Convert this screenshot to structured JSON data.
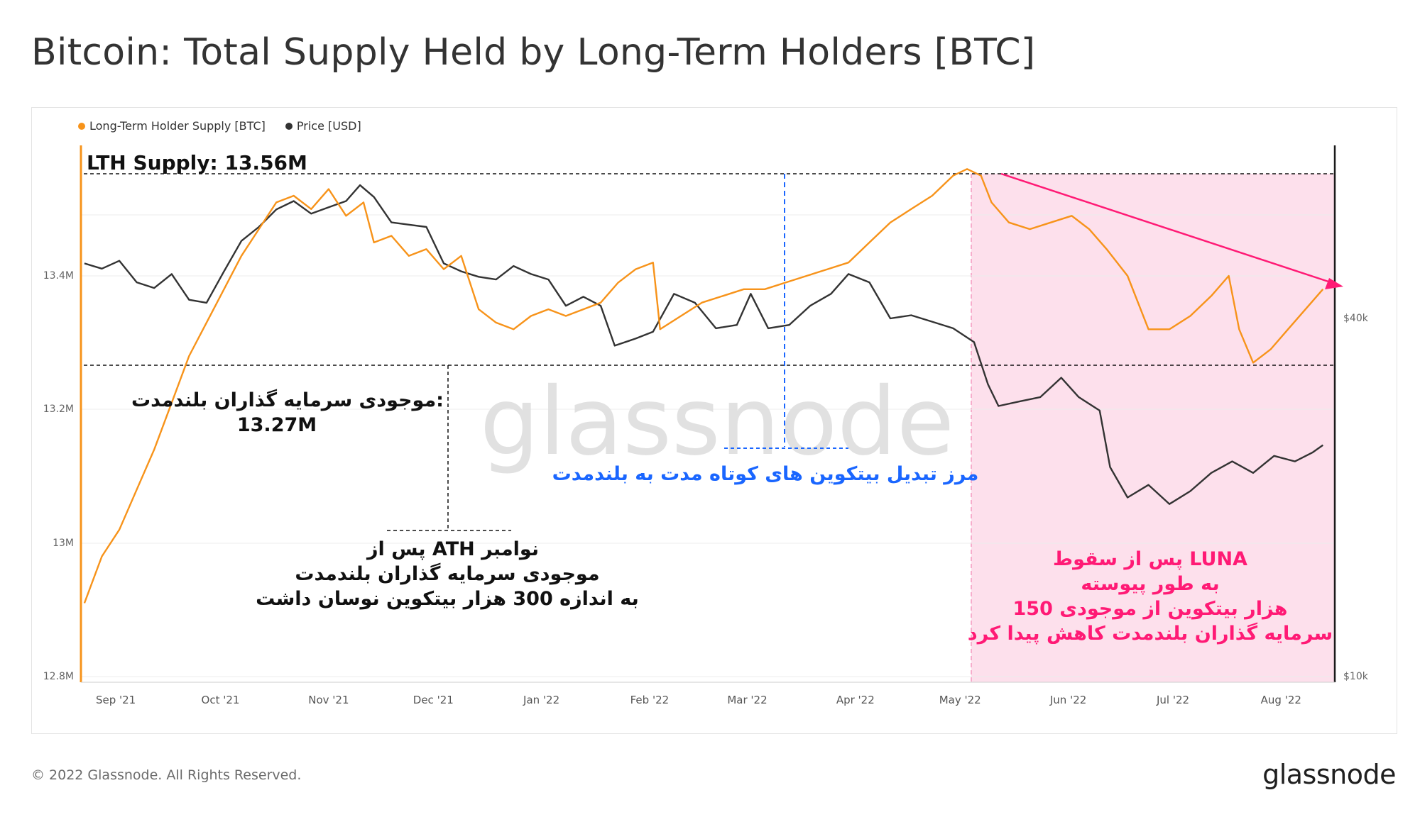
{
  "title": "Bitcoin: Total Supply Held by Long-Term Holders [BTC]",
  "footer": "© 2022 Glassnode. All Rights Reserved.",
  "brand": "glassnode",
  "watermark": "glassnode",
  "colors": {
    "lth": "#f7931a",
    "price": "#2b2b2b",
    "shade": "#fde0ec",
    "annotation_pink": "#ff1a75",
    "annotation_blue": "#1a66ff"
  },
  "legend": [
    {
      "label": "Long-Term Holder Supply [BTC]",
      "color": "#f7931a"
    },
    {
      "label": "Price [USD]",
      "color": "#333333"
    }
  ],
  "annotations": {
    "lth_supply": "LTH Supply: 13.56M",
    "left_value_line1": "موجودی سرمایه گذاران بلندمدت:",
    "left_value_line2": "13.27M",
    "blue_boundary": "مرز تبدیل بیتکوین های کوتاه مدت به بلندمدت",
    "ath_line1": "پس از ATH نوامبر",
    "ath_line2": "موجودی سرمایه گذاران بلندمدت",
    "ath_line3": "به اندازه 300 هزار بیتکوین نوسان داشت",
    "luna_line1": "پس از سقوط  LUNA",
    "luna_line2": "به طور پیوسته",
    "luna_line3": "150 هزار بیتکوین از موجودی",
    "luna_line4": "سرمایه گذاران بلندمدت کاهش پیدا کرد"
  },
  "chart_data": {
    "type": "line",
    "title": "Bitcoin: Total Supply Held by Long-Term Holders [BTC]",
    "x_ticks": [
      "Sep '21",
      "Oct '21",
      "Nov '21",
      "Dec '21",
      "Jan '22",
      "Feb '22",
      "Mar '22",
      "Apr '22",
      "May '22",
      "Jun '22",
      "Jul '22",
      "Aug '22"
    ],
    "y_left": {
      "label": "",
      "ticks": [
        "13.4M",
        "13.2M",
        "13M",
        "12.8M"
      ],
      "range": [
        12.8,
        13.6
      ],
      "unit": "M BTC"
    },
    "y_right": {
      "label": "",
      "ticks": [
        "$40k",
        "$10k"
      ],
      "scale": "log"
    },
    "grid": true,
    "legend_position": "top-left",
    "series": [
      {
        "name": "Long-Term Holder Supply [BTC]",
        "axis": "left",
        "x": [
          "2021-08-23",
          "2021-08-28",
          "2021-09-02",
          "2021-09-07",
          "2021-09-12",
          "2021-09-17",
          "2021-09-22",
          "2021-09-27",
          "2021-10-02",
          "2021-10-07",
          "2021-10-12",
          "2021-10-17",
          "2021-10-22",
          "2021-10-27",
          "2021-11-01",
          "2021-11-06",
          "2021-11-11",
          "2021-11-14",
          "2021-11-19",
          "2021-11-24",
          "2021-11-29",
          "2021-12-04",
          "2021-12-09",
          "2021-12-14",
          "2021-12-19",
          "2021-12-24",
          "2021-12-29",
          "2022-01-03",
          "2022-01-08",
          "2022-01-13",
          "2022-01-18",
          "2022-01-23",
          "2022-01-28",
          "2022-02-02",
          "2022-02-04",
          "2022-02-10",
          "2022-02-16",
          "2022-02-22",
          "2022-02-28",
          "2022-03-06",
          "2022-03-12",
          "2022-03-18",
          "2022-03-24",
          "2022-03-30",
          "2022-04-05",
          "2022-04-11",
          "2022-04-17",
          "2022-04-23",
          "2022-04-29",
          "2022-05-03",
          "2022-05-07",
          "2022-05-10",
          "2022-05-15",
          "2022-05-21",
          "2022-05-27",
          "2022-06-02",
          "2022-06-07",
          "2022-06-12",
          "2022-06-18",
          "2022-06-24",
          "2022-06-30",
          "2022-07-06",
          "2022-07-12",
          "2022-07-17",
          "2022-07-20",
          "2022-07-24",
          "2022-07-29",
          "2022-08-03",
          "2022-08-08",
          "2022-08-13"
        ],
        "values": [
          12.91,
          12.98,
          13.02,
          13.08,
          13.14,
          13.21,
          13.28,
          13.33,
          13.38,
          13.43,
          13.47,
          13.51,
          13.52,
          13.5,
          13.53,
          13.49,
          13.51,
          13.45,
          13.46,
          13.43,
          13.44,
          13.41,
          13.43,
          13.35,
          13.33,
          13.32,
          13.34,
          13.35,
          13.34,
          13.35,
          13.36,
          13.39,
          13.41,
          13.42,
          13.32,
          13.34,
          13.36,
          13.37,
          13.38,
          13.38,
          13.39,
          13.4,
          13.41,
          13.42,
          13.45,
          13.48,
          13.5,
          13.52,
          13.55,
          13.56,
          13.55,
          13.51,
          13.48,
          13.47,
          13.48,
          13.49,
          13.47,
          13.44,
          13.4,
          13.32,
          13.32,
          13.34,
          13.37,
          13.4,
          13.32,
          13.27,
          13.29,
          13.32,
          13.35,
          13.38
        ]
      },
      {
        "name": "Price [USD]",
        "axis": "right",
        "x": [
          "2021-08-23",
          "2021-08-28",
          "2021-09-02",
          "2021-09-07",
          "2021-09-12",
          "2021-09-17",
          "2021-09-22",
          "2021-09-27",
          "2021-10-02",
          "2021-10-07",
          "2021-10-12",
          "2021-10-17",
          "2021-10-22",
          "2021-10-27",
          "2021-11-01",
          "2021-11-06",
          "2021-11-10",
          "2021-11-14",
          "2021-11-19",
          "2021-11-24",
          "2021-11-29",
          "2021-12-04",
          "2021-12-09",
          "2021-12-14",
          "2021-12-19",
          "2021-12-24",
          "2021-12-29",
          "2022-01-03",
          "2022-01-08",
          "2022-01-13",
          "2022-01-18",
          "2022-01-22",
          "2022-01-28",
          "2022-02-02",
          "2022-02-08",
          "2022-02-14",
          "2022-02-20",
          "2022-02-26",
          "2022-03-02",
          "2022-03-07",
          "2022-03-13",
          "2022-03-19",
          "2022-03-25",
          "2022-03-30",
          "2022-04-05",
          "2022-04-11",
          "2022-04-17",
          "2022-04-23",
          "2022-04-29",
          "2022-05-05",
          "2022-05-09",
          "2022-05-12",
          "2022-05-18",
          "2022-05-24",
          "2022-05-30",
          "2022-06-04",
          "2022-06-10",
          "2022-06-13",
          "2022-06-18",
          "2022-06-24",
          "2022-06-30",
          "2022-07-06",
          "2022-07-12",
          "2022-07-18",
          "2022-07-24",
          "2022-07-30",
          "2022-08-05",
          "2022-08-10",
          "2022-08-13"
        ],
        "values": [
          49500,
          48500,
          50000,
          46000,
          45000,
          47500,
          43000,
          42500,
          48000,
          54000,
          57000,
          61000,
          63000,
          60000,
          61500,
          63000,
          67000,
          64000,
          58000,
          57500,
          57000,
          49500,
          48000,
          47000,
          46500,
          49000,
          47500,
          46500,
          42000,
          43500,
          42000,
          36000,
          37000,
          38000,
          44000,
          42500,
          38500,
          39000,
          44000,
          38500,
          39000,
          42000,
          44000,
          47500,
          46000,
          40000,
          40500,
          39500,
          38500,
          36500,
          31000,
          28500,
          29000,
          29500,
          31800,
          29500,
          28000,
          22500,
          20000,
          21000,
          19500,
          20500,
          22000,
          23000,
          22000,
          23500,
          23000,
          23800,
          24500
        ]
      }
    ]
  }
}
